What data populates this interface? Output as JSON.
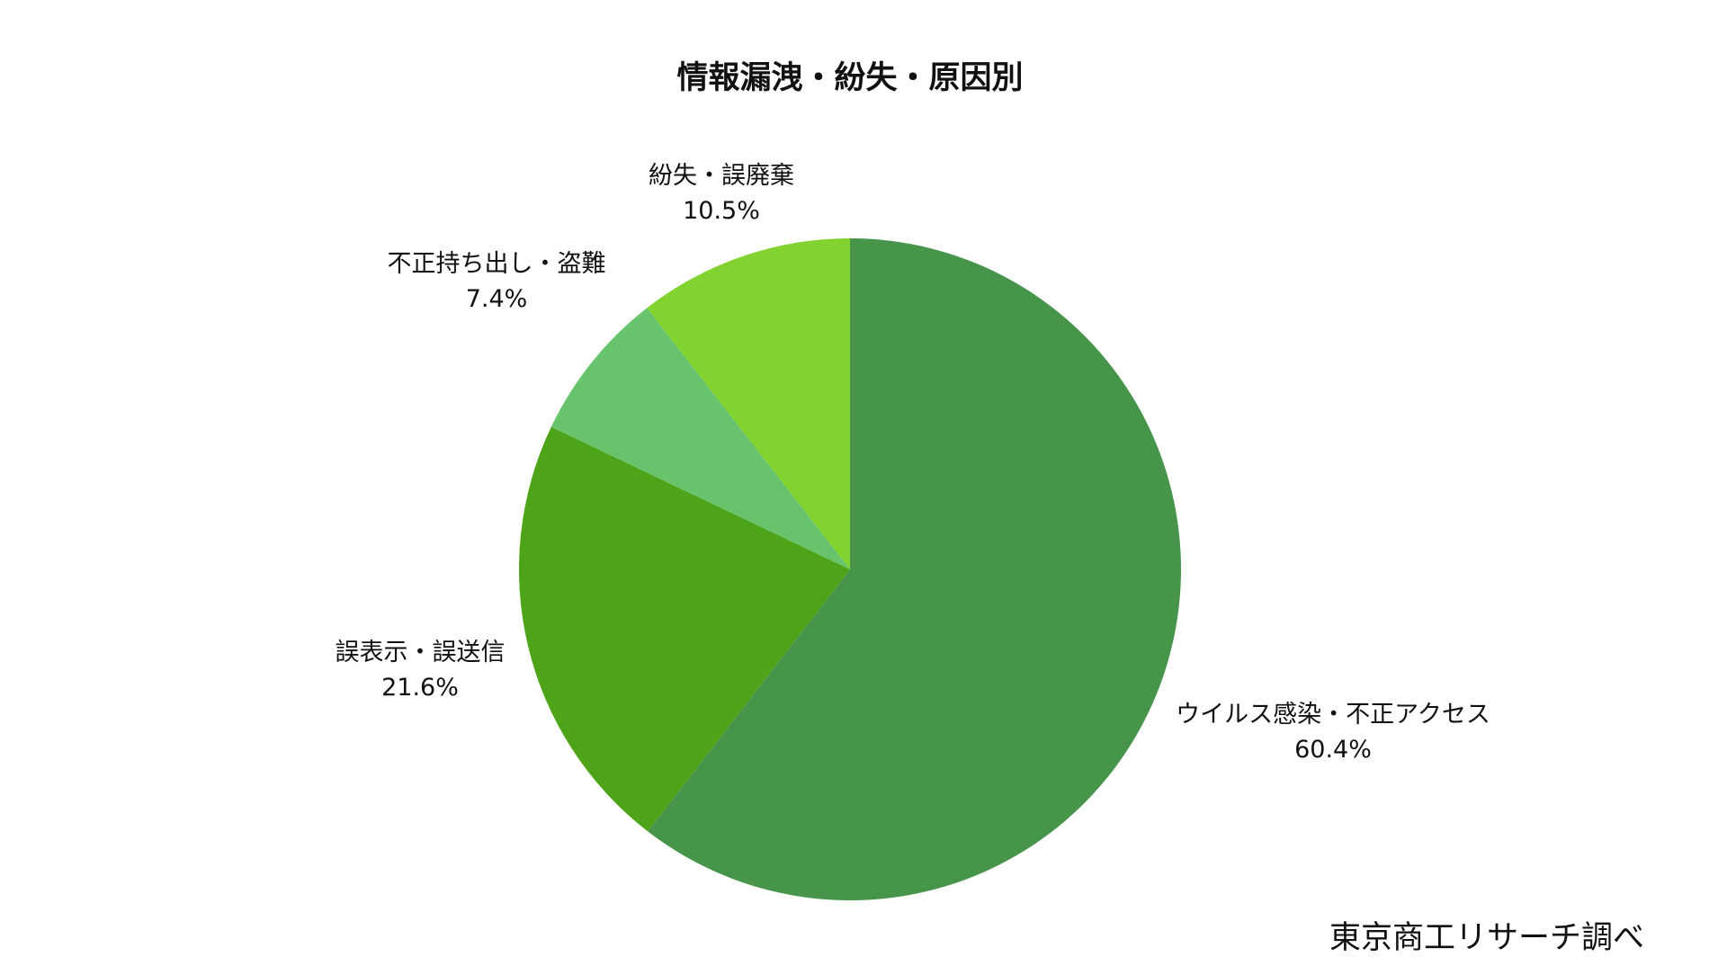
{
  "chart_data": {
    "type": "pie",
    "title": "情報漏洩・紛失・原因別",
    "start_angle_deg": 0,
    "direction": "clockwise",
    "slices": [
      {
        "label": "ウイルス感染・不正アクセス",
        "value": 60.4,
        "value_label": "60.4%",
        "color": "#47944b"
      },
      {
        "label": "誤表示・誤送信",
        "value": 21.6,
        "value_label": "21.6%",
        "color": "#4ea418"
      },
      {
        "label": "不正持ち出し・盗難",
        "value": 7.4,
        "value_label": "7.4%",
        "color": "#67c46d"
      },
      {
        "label": "紛失・誤廃棄",
        "value": 10.5,
        "value_label": "10.5%",
        "color": "#82d32f"
      }
    ]
  },
  "source": "東京商工リサーチ調べ"
}
